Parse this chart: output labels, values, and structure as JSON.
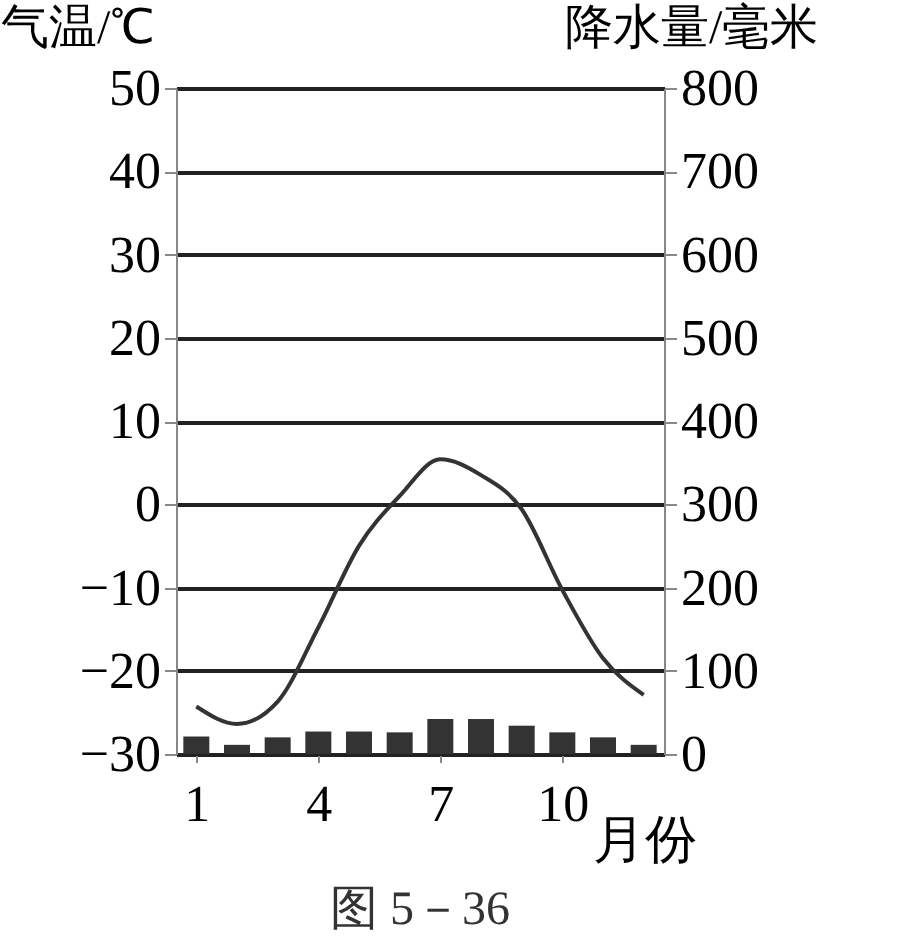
{
  "chart_data": {
    "type": "bar",
    "x": [
      1,
      2,
      3,
      4,
      5,
      6,
      7,
      8,
      9,
      10,
      11,
      12
    ],
    "xlim": [
      0.5,
      12.5
    ],
    "xticks": [
      1,
      4,
      7,
      10
    ],
    "xlabel": "月份",
    "ylabel": "气温/℃",
    "y2label": "降水量/毫米",
    "ylim": [
      -30,
      50
    ],
    "yticks": [
      -30,
      -20,
      -10,
      0,
      10,
      20,
      30,
      40,
      50
    ],
    "y2lim": [
      0,
      800
    ],
    "y2ticks": [
      0,
      100,
      200,
      300,
      400,
      500,
      600,
      700,
      800
    ],
    "grid": "y",
    "series": [
      {
        "axis": "y2",
        "color": "#333333",
        "values": [
          21,
          11,
          20,
          27,
          27,
          26,
          42,
          42,
          34,
          26,
          20,
          11
        ]
      },
      {
        "type": "line",
        "color": "#333333",
        "marker": "none",
        "values": [
          -24.3,
          -26.4,
          -23.7,
          -14.8,
          -5,
          1,
          5.4,
          3.5,
          -0.6,
          -10.3,
          -18.5,
          -22.9
        ]
      }
    ],
    "annotations": [
      "图 5－36"
    ]
  }
}
